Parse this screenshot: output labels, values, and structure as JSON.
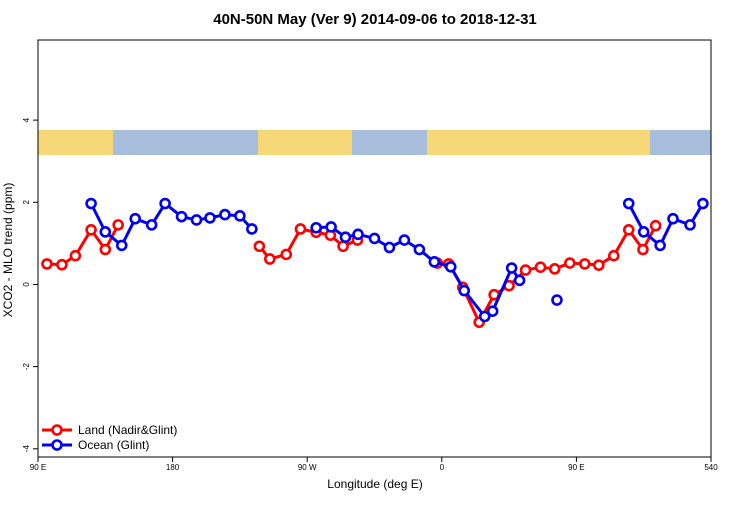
{
  "chart_data": {
    "type": "line",
    "title": "40N-50N May (Ver 9)   2014-09-06 to 2018-12-31",
    "x_label": "Longitude (deg E)",
    "y_label": "XCO2 - MLO trend (ppm)",
    "xlim": [
      90,
      540
    ],
    "xticks": [
      {
        "value": 90,
        "label": "90 E"
      },
      180,
      {
        "value": 270,
        "label": "90 W"
      },
      {
        "value": 360,
        "label": "0"
      },
      {
        "value": 450,
        "label": "90 E"
      },
      540
    ],
    "ylim": [
      -4.2,
      5.95
    ],
    "yticks": [
      -4,
      -2,
      0,
      2,
      4
    ],
    "grid": false,
    "legend": "bottom-left",
    "series": [
      {
        "name": "Land (Nadir&Glint)",
        "color": "#ff0000",
        "x": [
          96,
          106,
          115,
          125.5,
          135,
          143.6,
          null,
          238,
          245,
          256,
          265.5,
          276,
          285.5,
          294,
          303.6,
          null,
          357,
          364.6,
          374,
          385,
          395,
          405,
          416,
          426,
          435.5,
          445.6,
          455.6,
          465,
          475,
          485,
          494.5,
          503
        ],
        "values": [
          0.5,
          0.48,
          0.7,
          1.33,
          0.85,
          1.45,
          null,
          0.93,
          0.62,
          0.73,
          1.35,
          1.27,
          1.2,
          0.93,
          1.08,
          null,
          0.52,
          0.5,
          -0.07,
          -0.92,
          -0.25,
          -0.03,
          0.35,
          0.42,
          0.38,
          0.52,
          0.5,
          0.47,
          0.7,
          1.33,
          0.85,
          1.43
        ]
      },
      {
        "name": "Ocean (Glint)",
        "color": "#0000ee",
        "x": [
          125.5,
          135,
          146,
          155,
          166,
          175,
          186,
          196,
          205,
          215,
          225,
          233,
          null,
          276,
          286,
          295.6,
          304,
          315,
          325,
          335,
          345,
          355,
          366,
          375,
          388.7,
          394,
          406.7,
          412,
          null,
          437,
          null,
          485,
          495,
          506,
          514.6,
          526,
          534.6
        ],
        "values": [
          1.97,
          1.28,
          0.95,
          1.6,
          1.45,
          1.97,
          1.65,
          1.57,
          1.62,
          1.7,
          1.67,
          1.35,
          null,
          1.38,
          1.4,
          1.15,
          1.22,
          1.12,
          0.9,
          1.08,
          0.85,
          0.55,
          0.43,
          -0.15,
          -0.78,
          -0.65,
          0.4,
          0.1,
          null,
          -0.38,
          null,
          1.97,
          1.28,
          0.95,
          1.6,
          1.45,
          1.97
        ]
      }
    ]
  }
}
